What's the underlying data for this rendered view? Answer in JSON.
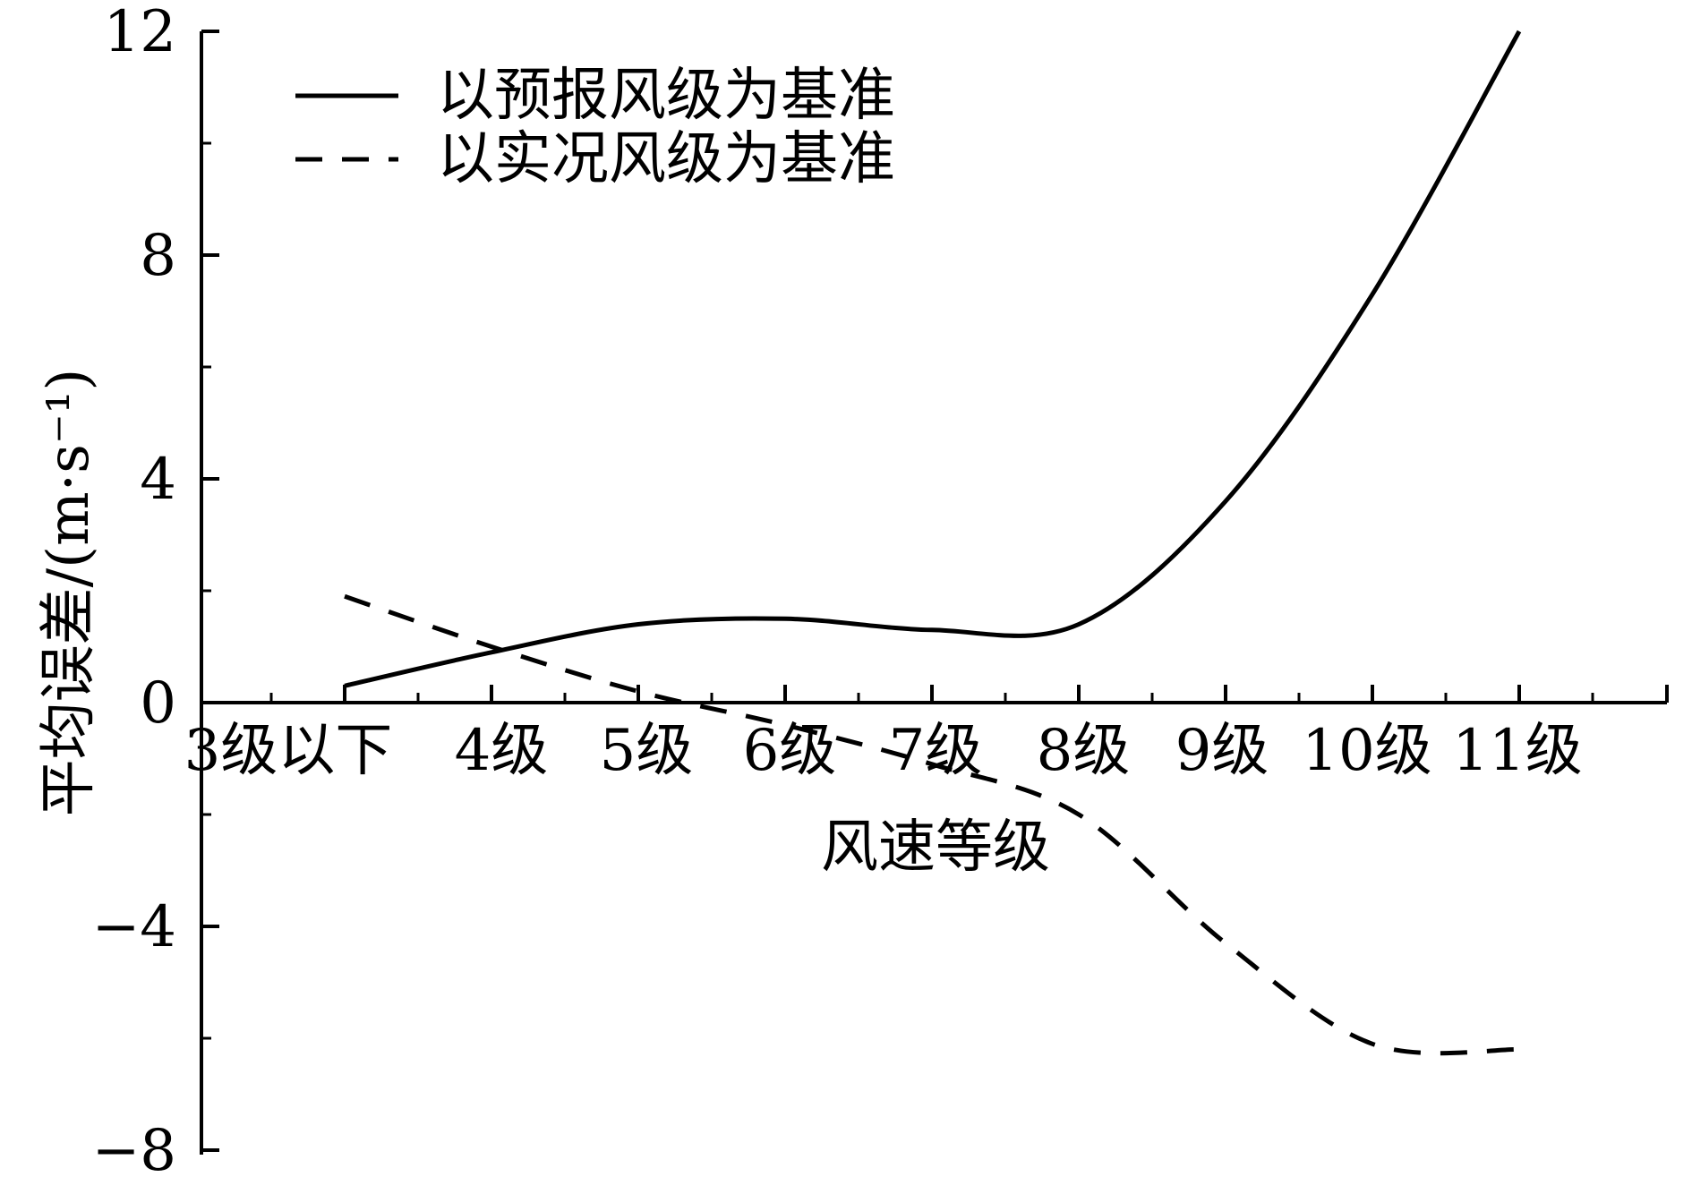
{
  "chart_data": {
    "type": "line",
    "categories": [
      "3级以下",
      "4级",
      "5级",
      "6级",
      "7级",
      "8级",
      "9级",
      "10级",
      "11级"
    ],
    "series": [
      {
        "name": "以预报风级为基准",
        "style": "solid",
        "values": [
          0.3,
          0.9,
          1.4,
          1.5,
          1.3,
          1.4,
          3.6,
          7.3,
          12.0
        ]
      },
      {
        "name": "以实况风级为基准",
        "style": "dashed",
        "values": [
          1.9,
          1.0,
          0.2,
          -0.4,
          -1.1,
          -2.0,
          -4.3,
          -6.1,
          -6.2
        ]
      }
    ],
    "xlabel": "风速等级",
    "ylabel": "平均误差/(m·s⁻¹)",
    "ylim": [
      -8,
      12
    ],
    "yticks": [
      -8,
      -4,
      0,
      4,
      8,
      12
    ],
    "ytick_labels": [
      "−8",
      "−4",
      "0",
      "4",
      "8",
      "12"
    ],
    "grid": false,
    "legend_position": "top-left",
    "line_color": "#000000"
  }
}
